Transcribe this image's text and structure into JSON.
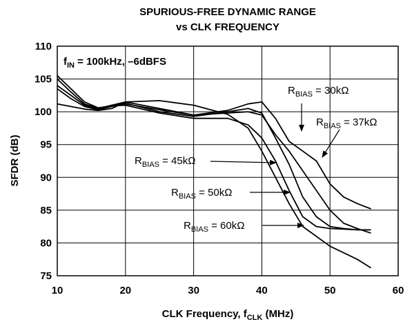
{
  "chart_data": {
    "type": "line",
    "title": [
      "SPURIOUS-FREE DYNAMIC RANGE",
      "vs CLK FREQUENCY"
    ],
    "ylabel": "SFDR (dB)",
    "xlabel": {
      "text": "CLK Frequency, f",
      "sub": "CLK",
      "rest": " (MHz)"
    },
    "note": {
      "text": "f",
      "sub": "IN",
      "rest": " = 100kHz, –6dBFS"
    },
    "xlim": [
      10,
      60
    ],
    "xticks": [
      10,
      20,
      30,
      40,
      50,
      60
    ],
    "ylim": [
      75,
      110
    ],
    "yticks": [
      75,
      80,
      85,
      90,
      95,
      100,
      105,
      110
    ],
    "grid": true,
    "x": [
      10,
      12,
      14,
      16,
      18,
      20,
      25,
      30,
      35,
      38,
      40,
      42,
      44,
      46,
      48,
      50,
      52,
      54,
      56
    ],
    "series": [
      {
        "label": {
          "text": "R",
          "sub": "BIAS",
          "rest": " = 30kΩ"
        },
        "color": "#000000",
        "values": [
          103.5,
          102,
          100.8,
          100.3,
          100.8,
          101.2,
          100.3,
          99.5,
          100.2,
          101.2,
          101.5,
          99,
          95.5,
          94,
          92.5,
          89,
          87,
          86,
          85.2
        ]
      },
      {
        "label": {
          "text": "R",
          "sub": "BIAS",
          "rest": " = 37kΩ"
        },
        "color": "#000000",
        "values": [
          104,
          102.5,
          101,
          100.4,
          101,
          101.5,
          100.5,
          99.5,
          99.8,
          100,
          99.5,
          96.5,
          94,
          91,
          88,
          85,
          83,
          82.2,
          81.5
        ]
      },
      {
        "label": {
          "text": "R",
          "sub": "BIAS",
          "rest": " = 45kΩ"
        },
        "color": "#000000",
        "values": [
          105,
          103,
          101.2,
          100.5,
          101,
          101.3,
          100,
          99.3,
          100,
          100.5,
          99.8,
          96,
          92,
          87,
          84,
          82.5,
          82.2,
          82,
          82
        ]
      },
      {
        "label": {
          "text": "R",
          "sub": "BIAS",
          "rest": " = 50kΩ"
        },
        "color": "#000000",
        "values": [
          105.5,
          103.5,
          101.5,
          100.6,
          100.9,
          101,
          99.8,
          99,
          99,
          98,
          96,
          92.5,
          88,
          84,
          82.5,
          82.2,
          82.1,
          82,
          82
        ]
      },
      {
        "label": {
          "text": "R",
          "sub": "BIAS",
          "rest": " = 60kΩ"
        },
        "color": "#000000",
        "values": [
          101.2,
          100.8,
          100.4,
          100.2,
          100.5,
          101.5,
          101.7,
          101,
          99.6,
          97.5,
          94,
          90,
          86,
          82.5,
          81,
          79.5,
          78.5,
          77.5,
          76.2
        ]
      }
    ]
  }
}
